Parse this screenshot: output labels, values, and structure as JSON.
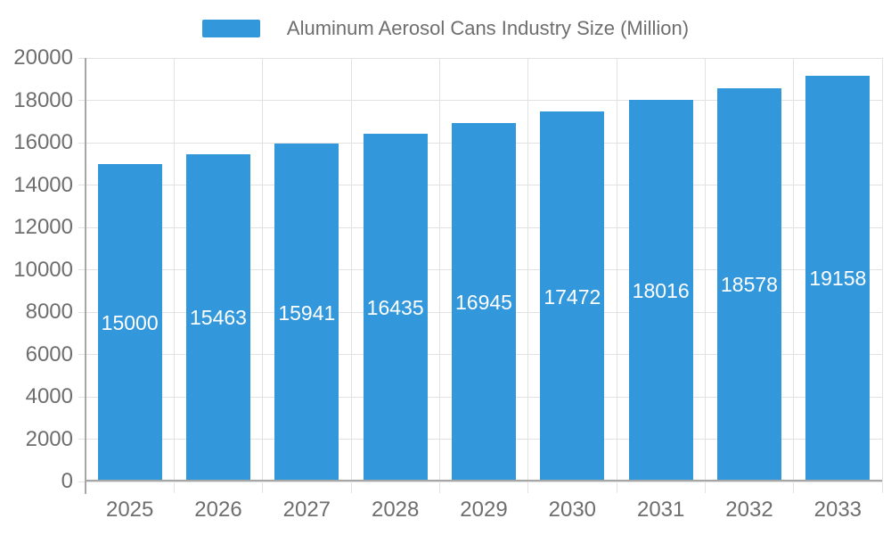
{
  "chart_data": {
    "type": "bar",
    "title": "Aluminum Aerosol Cans Industry Size (Million)",
    "legend": [
      "Aluminum Aerosol Cans Industry Size (Million)"
    ],
    "legend_position": "top",
    "categories": [
      "2025",
      "2026",
      "2027",
      "2028",
      "2029",
      "2030",
      "2031",
      "2032",
      "2033"
    ],
    "series": [
      {
        "name": "Aluminum Aerosol Cans Industry Size (Million)",
        "values": [
          15000,
          15463,
          15941,
          16435,
          16945,
          17472,
          18016,
          18578,
          19158
        ]
      }
    ],
    "xlabel": "",
    "ylabel": "",
    "ylim": [
      0,
      20000
    ],
    "ytick_step": 2000,
    "yticks": [
      0,
      2000,
      4000,
      6000,
      8000,
      10000,
      12000,
      14000,
      16000,
      18000,
      20000
    ],
    "grid": true,
    "value_labels": "inside-center",
    "colors": {
      "bar": "#3398DB",
      "bar_label": "#FFFFFF",
      "axis_text": "#6E6E6E",
      "grid": "#E2E2E2",
      "axis_line": "#A6A6A6"
    }
  }
}
